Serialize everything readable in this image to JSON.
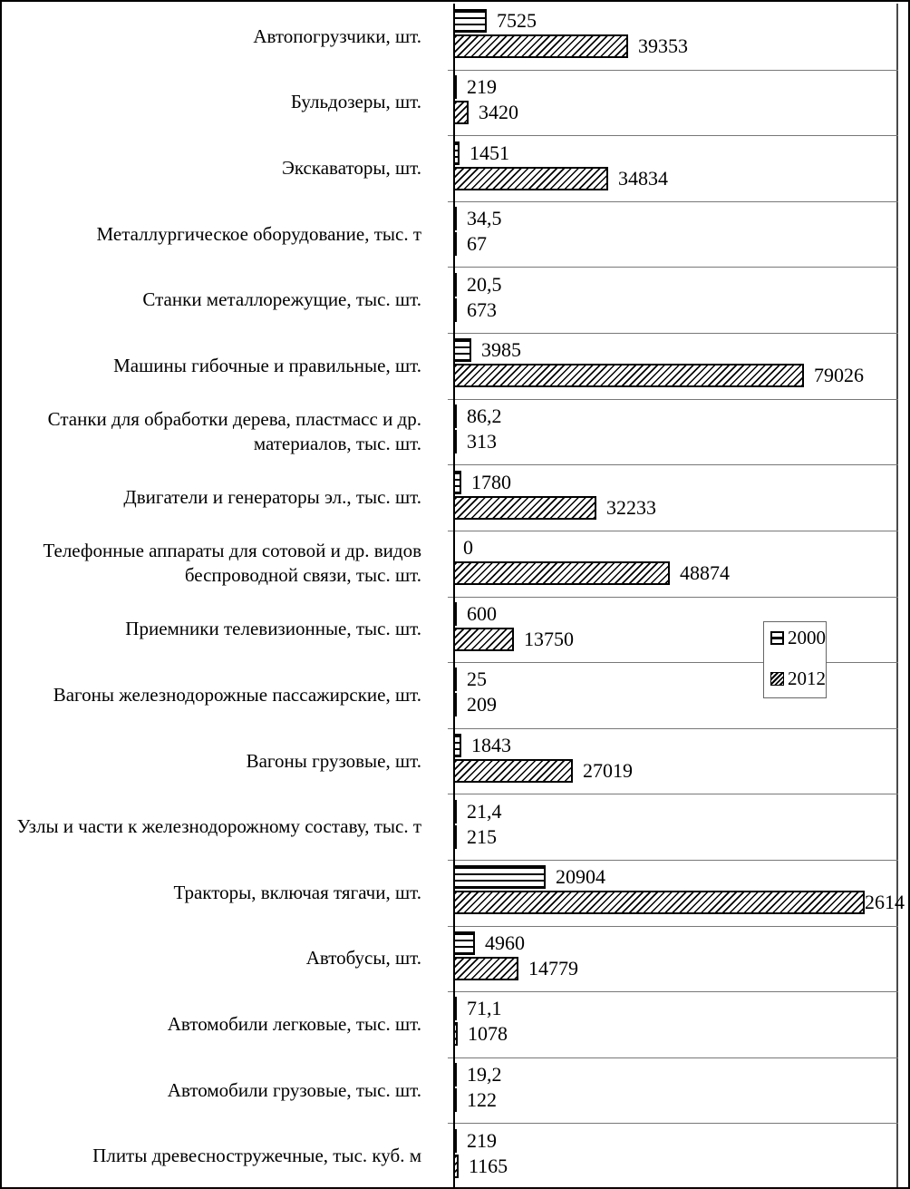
{
  "chart_data": {
    "type": "bar",
    "orientation": "horizontal",
    "grid": "row-separators-only",
    "legend_position": "middle-right",
    "xlim": [
      0,
      100000
    ],
    "categories": [
      "Автопогрузчики, шт.",
      "Бульдозеры, шт.",
      "Экскаваторы, шт.",
      "Металлургическое оборудование, тыс. т",
      "Станки металлорежущие, тыс. шт.",
      "Машины гибочные и правильные, шт.",
      "Станки для обработки дерева, пластмасс и др. материалов, тыс. шт.",
      "Двигатели и генераторы эл., тыс. шт.",
      "Телефонные аппараты для сотовой и др. видов беспроводной связи, тыс. шт.",
      "Приемники телевизионные, тыс. шт.",
      "Вагоны железнодорожные пассажирские, шт.",
      "Вагоны грузовые, шт.",
      "Узлы и части к железнодорожному составу, тыс. т",
      "Тракторы, включая тягачи, шт.",
      "Автобусы, шт.",
      "Автомобили легковые, тыс. шт.",
      "Автомобили грузовые, тыс. шт.",
      "Плиты древесностружечные, тыс. куб. м"
    ],
    "series": [
      {
        "name": "2000",
        "pattern": "horizontal-stripes",
        "values": [
          7525,
          219,
          1451,
          34.5,
          20.5,
          3985,
          86.2,
          1780,
          0,
          600,
          25,
          1843,
          21.4,
          20904,
          4960,
          71.1,
          19.2,
          219
        ],
        "display": [
          "7525",
          "219",
          "1451",
          "34,5",
          "20,5",
          "3985",
          "86,2",
          "1780",
          "0",
          "600",
          "25",
          "1843",
          "21,4",
          "20904",
          "4960",
          "71,1",
          "19,2",
          "219"
        ]
      },
      {
        "name": "2012",
        "pattern": "diagonal-hatch",
        "values": [
          39353,
          3420,
          34834,
          67,
          673,
          79026,
          313,
          32233,
          48874,
          13750,
          209,
          27019,
          215,
          92614,
          14779,
          1078,
          122,
          1165
        ],
        "display": [
          "39353",
          "3420",
          "34834",
          "67",
          "673",
          "79026",
          "313",
          "32233",
          "48874",
          "13750",
          "209",
          "27019",
          "215",
          "92614",
          "14779",
          "1078",
          "122",
          "1165"
        ]
      }
    ],
    "colors": {
      "foreground": "#000000",
      "background": "#ffffff",
      "separator": "#787878"
    }
  }
}
